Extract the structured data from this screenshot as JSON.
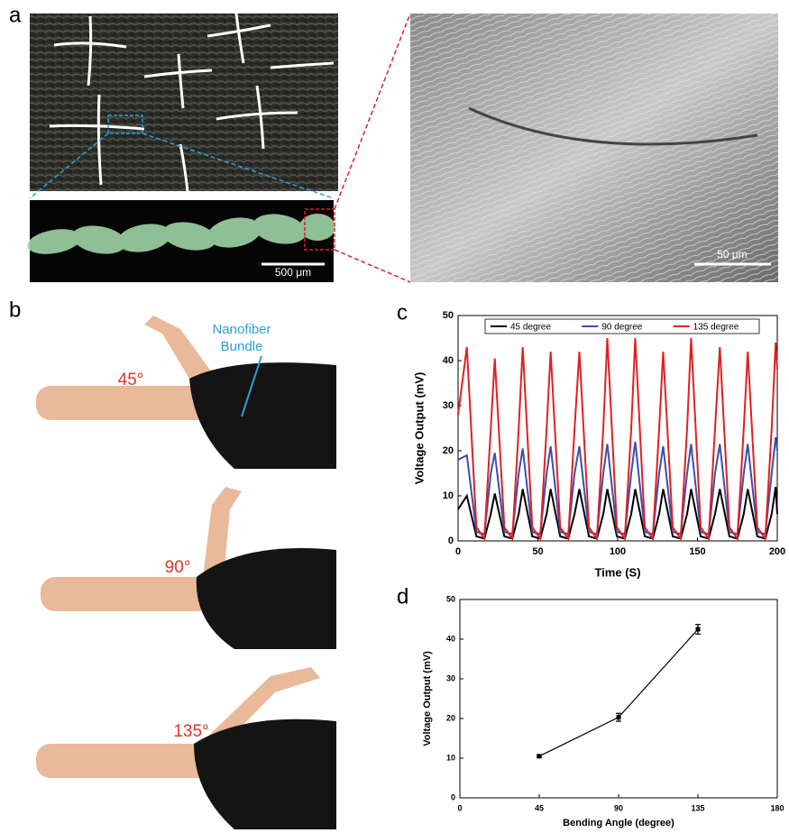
{
  "panels": {
    "a": {
      "label": "a",
      "scale_bar_fiber": "500 μm",
      "scale_bar_sem": "50 μm"
    },
    "b": {
      "label": "b",
      "annotation": [
        "Nanofiber",
        "Bundle"
      ],
      "angles": [
        "45°",
        "90°",
        "135°"
      ]
    },
    "c": {
      "label": "c"
    },
    "d": {
      "label": "d"
    }
  },
  "chart_data": [
    {
      "type": "line",
      "xlabel": "Time (S)",
      "ylabel": "Voltage Output (mV)",
      "x": [
        0,
        5.5,
        11.5,
        16.5,
        20.5,
        23,
        29,
        34,
        38,
        40.5,
        46.5,
        51.5,
        55.5,
        58,
        64,
        69,
        73,
        76,
        82,
        87,
        91,
        93.5,
        99.5,
        104.5,
        108.5,
        111,
        117,
        122,
        126,
        128.5,
        134.5,
        139.5,
        143.5,
        146,
        152,
        157,
        161,
        164,
        170,
        175,
        179,
        181.5,
        187.5,
        192.5,
        196.5,
        199,
        200
      ],
      "series": [
        {
          "name": "45 degree",
          "color": "#000000",
          "values": [
            7,
            10,
            1,
            0.5,
            6,
            10.5,
            1,
            0.5,
            6,
            11.5,
            1,
            0.5,
            6,
            11.5,
            1,
            0.5,
            6,
            11.5,
            1,
            0.5,
            6,
            11.5,
            1,
            0.5,
            6,
            11.5,
            1,
            0.5,
            6,
            11.5,
            1,
            0.5,
            6,
            11.5,
            1,
            0.5,
            6,
            11.5,
            1,
            0.5,
            6,
            11.5,
            1,
            0.5,
            6,
            12,
            6
          ]
        },
        {
          "name": "90 degree",
          "color": "#3a4fb0",
          "values": [
            18,
            19,
            2,
            1.5,
            15,
            19.5,
            2,
            1.5,
            15,
            20.5,
            2,
            1.5,
            15,
            21,
            2,
            1.5,
            15,
            21,
            2,
            1.5,
            15,
            21.5,
            2,
            1.5,
            15,
            22,
            2,
            1.5,
            15,
            21,
            2,
            1.5,
            15,
            21.5,
            2,
            1.5,
            15,
            21.5,
            2,
            1.5,
            15,
            21.5,
            2,
            1.5,
            15,
            23,
            20
          ]
        },
        {
          "name": "135 degree",
          "color": "#e02020",
          "values": [
            28,
            43,
            3,
            0.5,
            25,
            40.5,
            3,
            0.5,
            25,
            43,
            3,
            0.5,
            25,
            42,
            3,
            0.5,
            25,
            42,
            3,
            0.5,
            25,
            45,
            3,
            0.5,
            25,
            45,
            3,
            0.5,
            25,
            42,
            3,
            0.5,
            25,
            45,
            3,
            0.5,
            25,
            43,
            3,
            0.5,
            25,
            42,
            3,
            0.5,
            25,
            44,
            38
          ]
        }
      ],
      "xlim": [
        0,
        200
      ],
      "xticks": [
        0,
        50,
        100,
        150,
        200
      ],
      "ylim": [
        0,
        50
      ],
      "yticks": [
        0,
        10,
        20,
        30,
        40,
        50
      ],
      "legend": "top"
    },
    {
      "type": "scatter",
      "xlabel": "Bending Angle (degree)",
      "ylabel": "Voltage Output (mV)",
      "x": [
        45,
        90,
        135
      ],
      "values": [
        10.5,
        20.3,
        42.5
      ],
      "errors": [
        0.3,
        1,
        1.2
      ],
      "color": "#000000",
      "connect": true,
      "xlim": [
        0,
        180
      ],
      "xticks": [
        0,
        45,
        90,
        135,
        180
      ],
      "ylim": [
        0,
        50
      ],
      "yticks": [
        0,
        10,
        20,
        30,
        40,
        50
      ]
    }
  ]
}
